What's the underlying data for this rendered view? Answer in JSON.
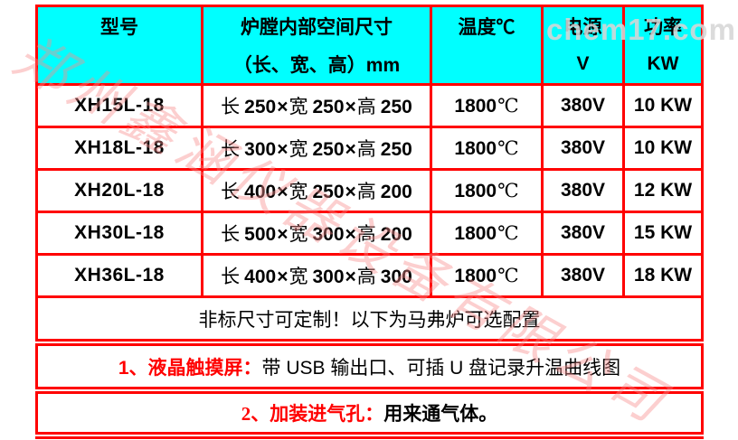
{
  "table": {
    "header": {
      "model": "型号",
      "size_line1": "炉膛内部空间尺寸",
      "size_line2": "（长、宽、高）mm",
      "temp": "温度℃",
      "power_line1": "电源",
      "power_line2": "V",
      "kw_line1": "功率",
      "kw_line2": "KW"
    },
    "dim_labels": {
      "length": "长",
      "width": "宽",
      "height": "高",
      "times": "×"
    },
    "temp_unit": "℃",
    "rows": [
      {
        "model": "XH15L-18",
        "length": "250",
        "width": "250",
        "height": "250",
        "temp": "1800",
        "voltage": "380V",
        "power": "10 KW"
      },
      {
        "model": "XH18L-18",
        "length": "300",
        "width": "250",
        "height": "250",
        "temp": "1800",
        "voltage": "380V",
        "power": "10 KW"
      },
      {
        "model": "XH20L-18",
        "length": "400",
        "width": "250",
        "height": "200",
        "temp": "1800",
        "voltage": "380V",
        "power": "12 KW"
      },
      {
        "model": "XH30L-18",
        "length": "500",
        "width": "300",
        "height": "200",
        "temp": "1800",
        "voltage": "380V",
        "power": "15 KW"
      },
      {
        "model": "XH36L-18",
        "length": "400",
        "width": "300",
        "height": "300",
        "temp": "1800",
        "voltage": "380V",
        "power": "18 KW"
      }
    ],
    "notes": {
      "custom": "非标尺寸可定制！以下为马弗炉可选配置",
      "option1_label": "1、液晶触摸屏：",
      "option1_text": "带 USB 输出口、可插 U 盘记录升温曲线图",
      "option2_label": "2、加装进气孔：",
      "option2_text": "用来通气体。"
    }
  },
  "watermarks": {
    "company": "郑州鑫涵仪器设备有限公司",
    "site": "chem17.com"
  },
  "colors": {
    "header_bg": "#00ffff",
    "header_text": "#0a0ae0",
    "border": "#ff0000",
    "accent_red": "#ff0000"
  }
}
